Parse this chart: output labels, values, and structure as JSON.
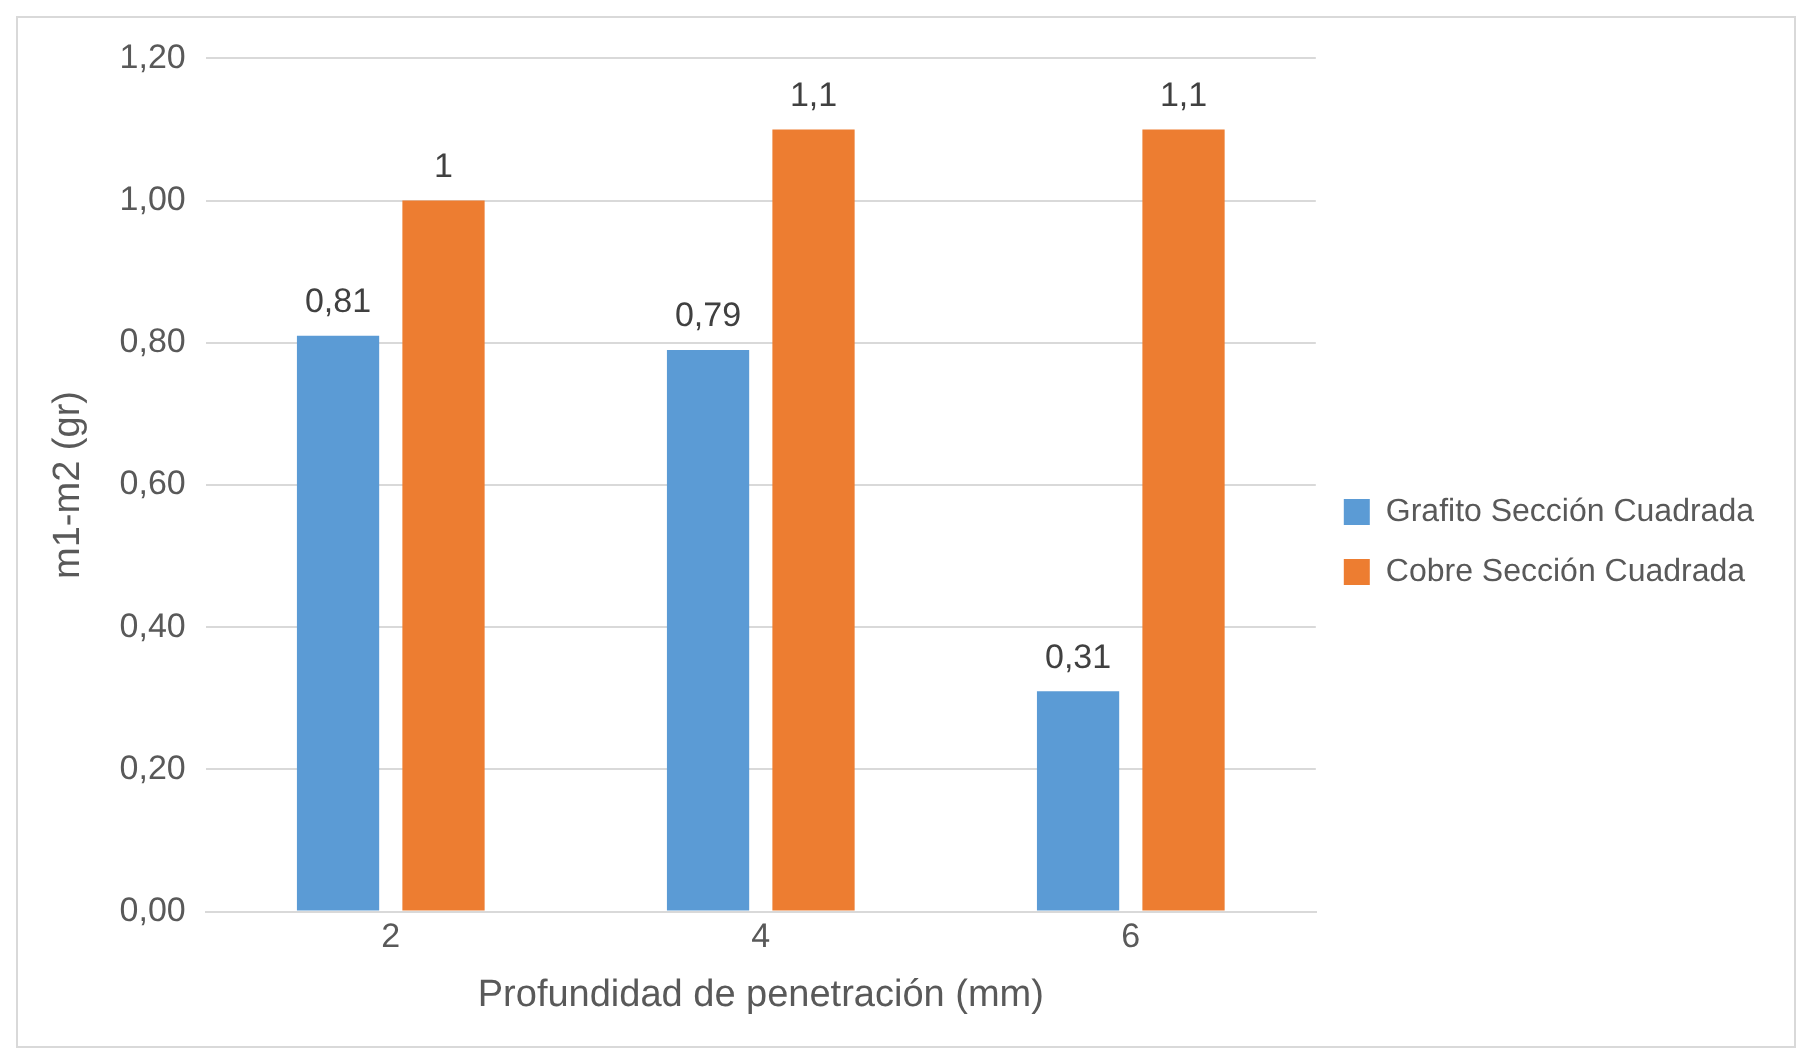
{
  "chart_data": {
    "type": "bar",
    "xlabel": "Profundidad de penetración (mm)",
    "ylabel": "m1-m2 (gr)",
    "categories": [
      "2",
      "4",
      "6"
    ],
    "series": [
      {
        "name": "Grafito Sección Cuadrada",
        "color": "#5b9bd5",
        "values": [
          0.81,
          0.79,
          0.31
        ],
        "value_labels": [
          "0,81",
          "0,79",
          "0,31"
        ]
      },
      {
        "name": "Cobre Sección Cuadrada",
        "color": "#ed7d31",
        "values": [
          1,
          1.1,
          1.1
        ],
        "value_labels": [
          "1",
          "1,1",
          "1,1"
        ]
      }
    ],
    "ylim": [
      0,
      1.2
    ],
    "yticks": [
      {
        "value": 0,
        "label": "0,00"
      },
      {
        "value": 0.2,
        "label": "0,20"
      },
      {
        "value": 0.4,
        "label": "0,40"
      },
      {
        "value": 0.6,
        "label": "0,60"
      },
      {
        "value": 0.8,
        "label": "0,80"
      },
      {
        "value": 1,
        "label": "1,00"
      },
      {
        "value": 1.2,
        "label": "1,20"
      }
    ],
    "grid": "y",
    "legend": "right"
  }
}
